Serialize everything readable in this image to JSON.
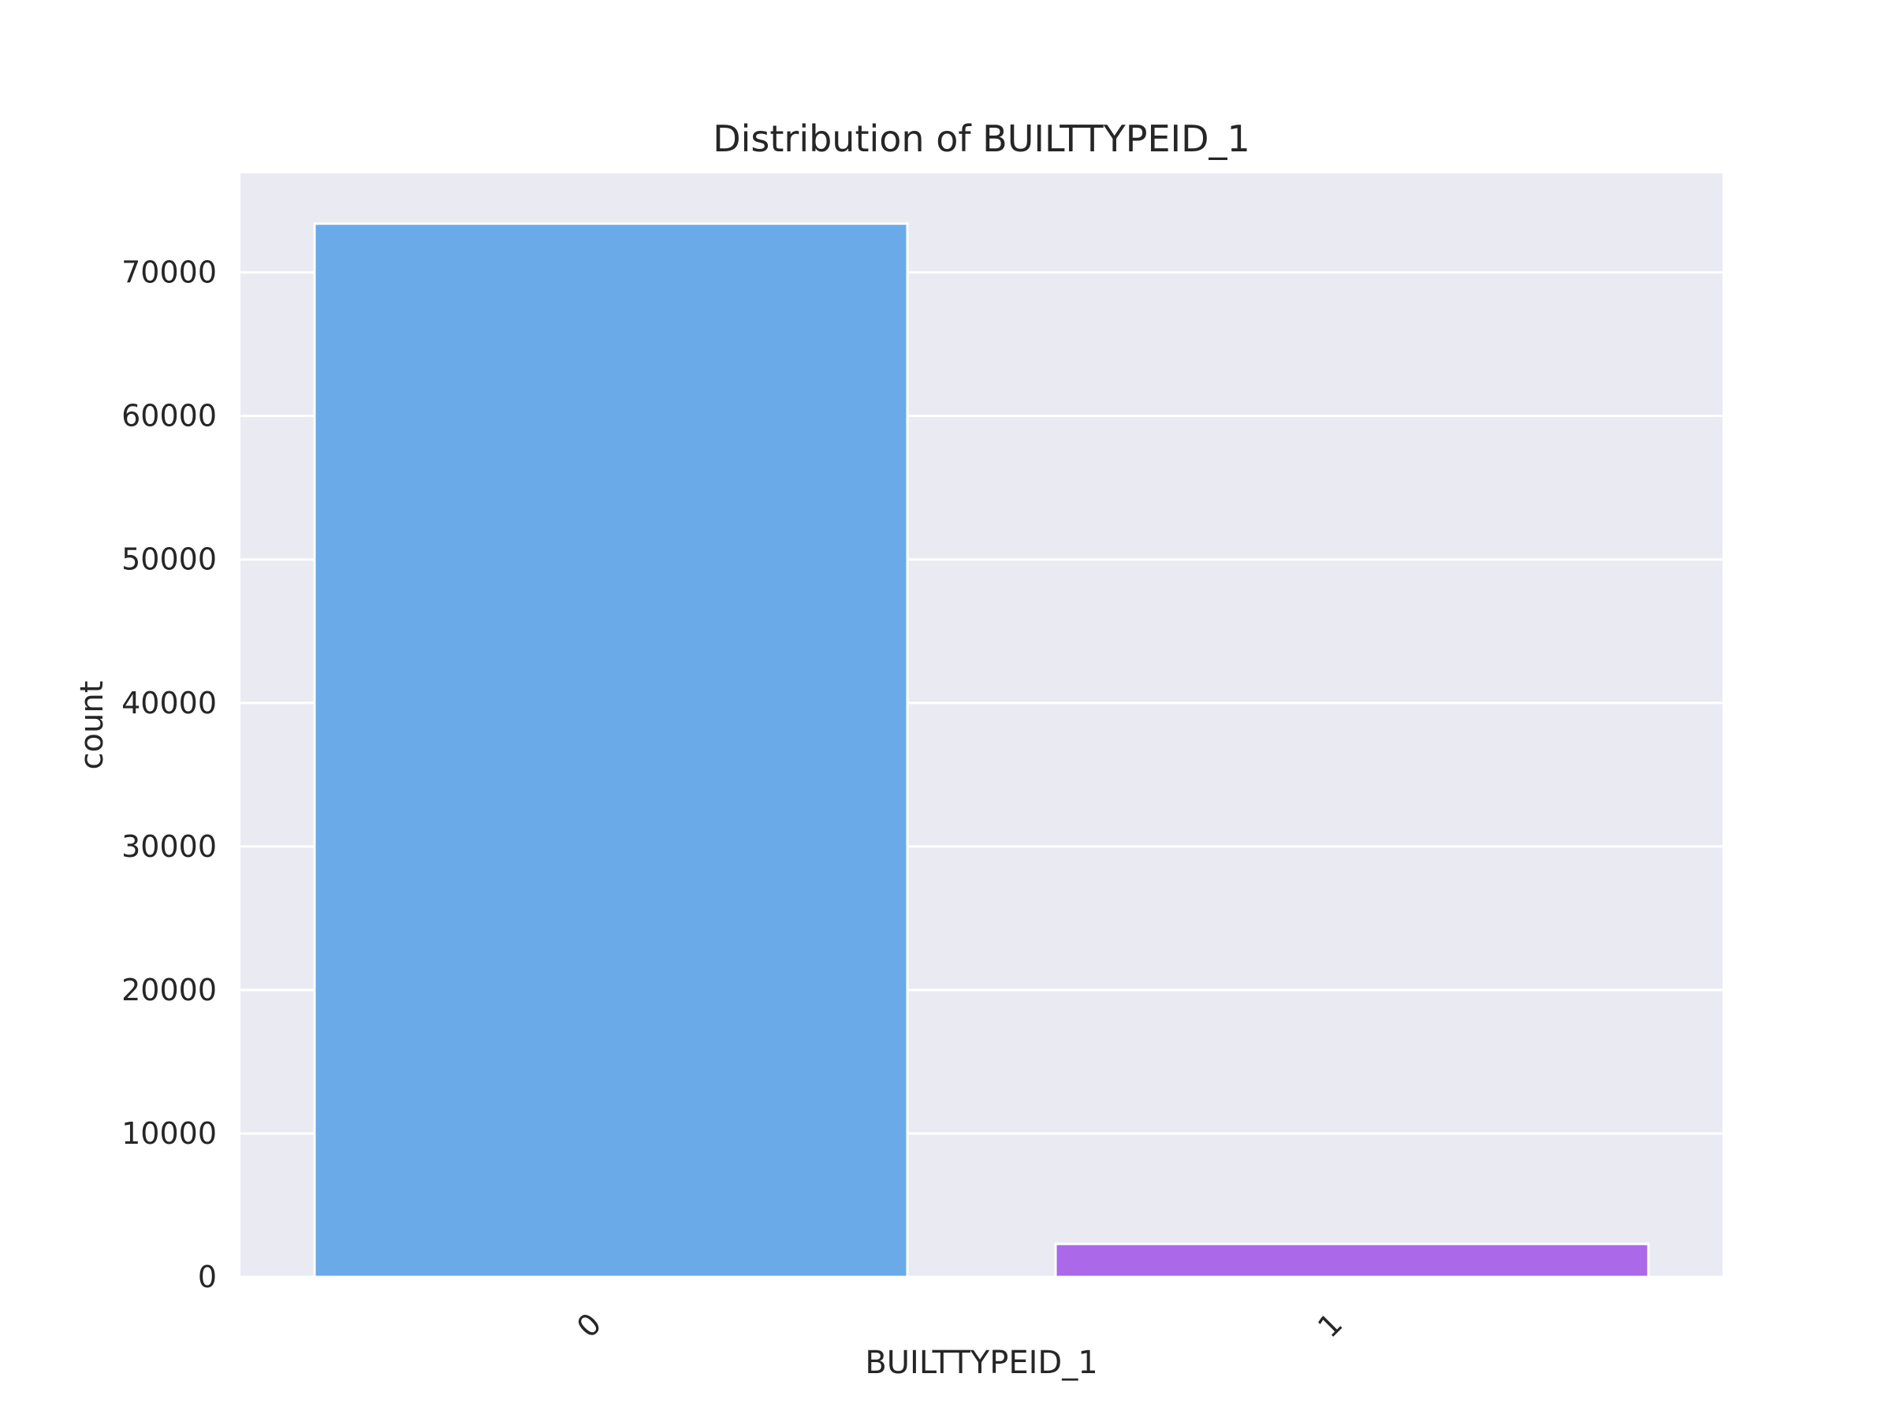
{
  "chart_data": {
    "type": "bar",
    "title": "Distribution of BUILTTYPEID_1",
    "xlabel": "BUILTTYPEID_1",
    "ylabel": "count",
    "categories": [
      "0",
      "1"
    ],
    "values": [
      73400,
      2300
    ],
    "colors": [
      "#6aaae8",
      "#ab68e8"
    ],
    "ylim": [
      0,
      76900
    ],
    "yticks": [
      0,
      10000,
      20000,
      30000,
      40000,
      50000,
      60000,
      70000
    ],
    "grid": true,
    "legend": "none",
    "plot_background": "#eaeaf2",
    "grid_color": "#ffffff"
  }
}
